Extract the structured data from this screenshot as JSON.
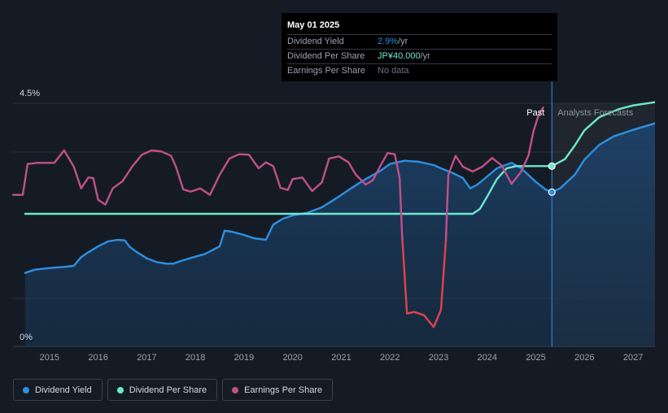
{
  "tooltip": {
    "date": "May 01 2025",
    "rows": [
      {
        "label": "Dividend Yield",
        "value": "2.9%",
        "unit": " /yr",
        "color": "#2e8fe0"
      },
      {
        "label": "Dividend Per Share",
        "value": "JP¥40.000",
        "unit": " /yr",
        "color": "#6ee7d0"
      },
      {
        "label": "Earnings Per Share",
        "value": "No data",
        "unit": "",
        "color": "#6b7480"
      }
    ]
  },
  "regions": {
    "past": "Past",
    "forecast": "Analysts Forecasts"
  },
  "legend": [
    {
      "label": "Dividend Yield",
      "color": "#2e8fe0"
    },
    {
      "label": "Dividend Per Share",
      "color": "#6ee7d0"
    },
    {
      "label": "Earnings Per Share",
      "color": "#c0508a"
    }
  ],
  "chart_data": {
    "type": "line",
    "y_axis": {
      "min_label": "0%",
      "max_label": "4.5%",
      "ylim": [
        0,
        4.5
      ],
      "unit": "%"
    },
    "x_ticks": [
      "2015",
      "2016",
      "2017",
      "2018",
      "2019",
      "2020",
      "2021",
      "2022",
      "2023",
      "2024",
      "2025",
      "2026",
      "2027"
    ],
    "xlim": [
      2014.25,
      2027.45
    ],
    "marker_date": 2025.33,
    "forecast_start": 2025.33,
    "shaded_from": 2024.35,
    "series": [
      {
        "name": "Dividend Yield",
        "color": "#2e8fe0",
        "area": true,
        "points": [
          [
            2014.5,
            1.37
          ],
          [
            2014.7,
            1.43
          ],
          [
            2015.0,
            1.46
          ],
          [
            2015.3,
            1.48
          ],
          [
            2015.5,
            1.5
          ],
          [
            2015.65,
            1.66
          ],
          [
            2015.8,
            1.75
          ],
          [
            2016.0,
            1.86
          ],
          [
            2016.2,
            1.95
          ],
          [
            2016.4,
            1.98
          ],
          [
            2016.55,
            1.97
          ],
          [
            2016.65,
            1.85
          ],
          [
            2016.8,
            1.75
          ],
          [
            2017.0,
            1.64
          ],
          [
            2017.2,
            1.57
          ],
          [
            2017.4,
            1.54
          ],
          [
            2017.55,
            1.54
          ],
          [
            2017.7,
            1.59
          ],
          [
            2018.0,
            1.67
          ],
          [
            2018.2,
            1.72
          ],
          [
            2018.5,
            1.86
          ],
          [
            2018.6,
            2.15
          ],
          [
            2018.75,
            2.13
          ],
          [
            2019.0,
            2.07
          ],
          [
            2019.2,
            2.01
          ],
          [
            2019.45,
            1.98
          ],
          [
            2019.6,
            2.26
          ],
          [
            2019.8,
            2.37
          ],
          [
            2020.0,
            2.43
          ],
          [
            2020.3,
            2.48
          ],
          [
            2020.6,
            2.58
          ],
          [
            2020.9,
            2.75
          ],
          [
            2021.2,
            2.93
          ],
          [
            2021.5,
            3.1
          ],
          [
            2021.8,
            3.25
          ],
          [
            2022.0,
            3.38
          ],
          [
            2022.3,
            3.44
          ],
          [
            2022.6,
            3.42
          ],
          [
            2022.9,
            3.36
          ],
          [
            2023.1,
            3.28
          ],
          [
            2023.3,
            3.21
          ],
          [
            2023.5,
            3.12
          ],
          [
            2023.65,
            2.93
          ],
          [
            2023.8,
            3.0
          ],
          [
            2024.0,
            3.15
          ],
          [
            2024.2,
            3.3
          ],
          [
            2024.5,
            3.4
          ],
          [
            2024.7,
            3.3
          ],
          [
            2025.0,
            3.05
          ],
          [
            2025.2,
            2.91
          ],
          [
            2025.33,
            2.86
          ],
          [
            2025.5,
            2.93
          ],
          [
            2025.8,
            3.18
          ],
          [
            2026.0,
            3.46
          ],
          [
            2026.3,
            3.73
          ],
          [
            2026.6,
            3.89
          ],
          [
            2027.0,
            4.01
          ],
          [
            2027.45,
            4.13
          ]
        ]
      },
      {
        "name": "Dividend Per Share",
        "color": "#6ee7d0",
        "area": false,
        "points": [
          [
            2014.5,
            2.46
          ],
          [
            2023.7,
            2.46
          ],
          [
            2023.85,
            2.55
          ],
          [
            2024.0,
            2.78
          ],
          [
            2024.2,
            3.1
          ],
          [
            2024.4,
            3.3
          ],
          [
            2024.6,
            3.34
          ],
          [
            2025.0,
            3.34
          ],
          [
            2025.33,
            3.34
          ],
          [
            2025.6,
            3.47
          ],
          [
            2025.8,
            3.72
          ],
          [
            2026.0,
            4.0
          ],
          [
            2026.3,
            4.24
          ],
          [
            2026.7,
            4.39
          ],
          [
            2027.0,
            4.46
          ],
          [
            2027.45,
            4.52
          ]
        ]
      },
      {
        "name": "Earnings Per Share",
        "color": "#c0508a",
        "negative_color": "#e0434a",
        "threshold": 1.97,
        "area": false,
        "points": [
          [
            2014.25,
            2.81
          ],
          [
            2014.45,
            2.81
          ],
          [
            2014.55,
            3.38
          ],
          [
            2014.75,
            3.4
          ],
          [
            2015.1,
            3.4
          ],
          [
            2015.3,
            3.63
          ],
          [
            2015.5,
            3.33
          ],
          [
            2015.65,
            2.93
          ],
          [
            2015.8,
            3.13
          ],
          [
            2015.9,
            3.12
          ],
          [
            2016.0,
            2.72
          ],
          [
            2016.15,
            2.63
          ],
          [
            2016.3,
            2.93
          ],
          [
            2016.5,
            3.06
          ],
          [
            2016.7,
            3.33
          ],
          [
            2016.9,
            3.55
          ],
          [
            2017.1,
            3.63
          ],
          [
            2017.3,
            3.61
          ],
          [
            2017.5,
            3.53
          ],
          [
            2017.6,
            3.33
          ],
          [
            2017.75,
            2.91
          ],
          [
            2017.9,
            2.87
          ],
          [
            2018.1,
            2.93
          ],
          [
            2018.3,
            2.81
          ],
          [
            2018.5,
            3.18
          ],
          [
            2018.7,
            3.48
          ],
          [
            2018.9,
            3.56
          ],
          [
            2019.1,
            3.55
          ],
          [
            2019.3,
            3.3
          ],
          [
            2019.45,
            3.41
          ],
          [
            2019.6,
            3.34
          ],
          [
            2019.75,
            2.94
          ],
          [
            2019.9,
            2.9
          ],
          [
            2020.0,
            3.1
          ],
          [
            2020.2,
            3.13
          ],
          [
            2020.4,
            2.88
          ],
          [
            2020.6,
            3.04
          ],
          [
            2020.75,
            3.48
          ],
          [
            2020.95,
            3.52
          ],
          [
            2021.15,
            3.41
          ],
          [
            2021.3,
            3.18
          ],
          [
            2021.5,
            3.0
          ],
          [
            2021.65,
            3.08
          ],
          [
            2021.8,
            3.34
          ],
          [
            2021.95,
            3.58
          ],
          [
            2022.1,
            3.56
          ],
          [
            2022.2,
            3.12
          ],
          [
            2022.25,
            2.06
          ],
          [
            2022.35,
            0.62
          ],
          [
            2022.5,
            0.65
          ],
          [
            2022.7,
            0.59
          ],
          [
            2022.9,
            0.37
          ],
          [
            2023.05,
            0.69
          ],
          [
            2023.15,
            1.97
          ],
          [
            2023.2,
            3.18
          ],
          [
            2023.35,
            3.53
          ],
          [
            2023.5,
            3.33
          ],
          [
            2023.7,
            3.24
          ],
          [
            2023.9,
            3.33
          ],
          [
            2024.1,
            3.49
          ],
          [
            2024.3,
            3.35
          ],
          [
            2024.5,
            3.01
          ],
          [
            2024.7,
            3.24
          ],
          [
            2024.85,
            3.54
          ],
          [
            2024.95,
            3.98
          ],
          [
            2025.05,
            4.26
          ],
          [
            2025.15,
            4.42
          ]
        ]
      }
    ]
  }
}
